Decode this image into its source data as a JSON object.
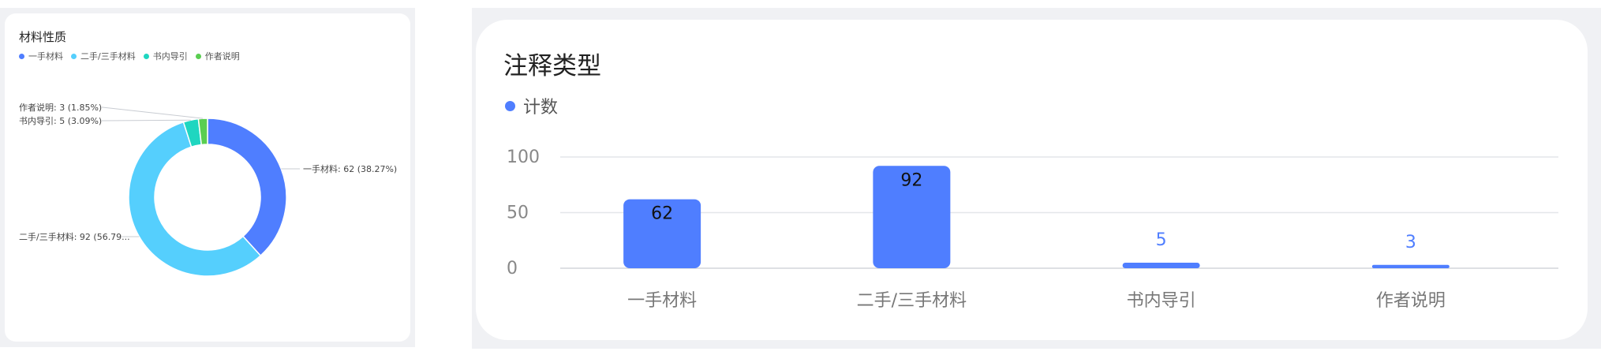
{
  "chart_data": [
    {
      "type": "pie",
      "style": "donut",
      "title": "材料性质",
      "legend": [
        "一手材料",
        "二手/三手材料",
        "书内导引",
        "作者说明"
      ],
      "slices": [
        {
          "label": "一手材料",
          "value": 62,
          "percent": "38.27%",
          "color": "#4f7eff",
          "callout": "一手材料: 62 (38.27%)"
        },
        {
          "label": "二手/三手材料",
          "value": 92,
          "percent": "56.79%",
          "color": "#55cffd",
          "callout": "二手/三手材料: 92 (56.79..."
        },
        {
          "label": "书内导引",
          "value": 5,
          "percent": "3.09%",
          "color": "#1fd6c0",
          "callout": "书内导引: 5 (3.09%)"
        },
        {
          "label": "作者说明",
          "value": 3,
          "percent": "1.85%",
          "color": "#5ace51",
          "callout": "作者说明: 3 (1.85%)"
        }
      ]
    },
    {
      "type": "bar",
      "title": "注释类型",
      "categories": [
        "一手材料",
        "二手/三手材料",
        "书内导引",
        "作者说明"
      ],
      "series": [
        {
          "name": "计数",
          "values": [
            62,
            92,
            5,
            3
          ],
          "color": "#4f7eff"
        }
      ],
      "ylim": [
        0,
        100
      ],
      "yticks": [
        "100",
        "50",
        "0"
      ],
      "grid": true,
      "legend_position": "top-left"
    }
  ]
}
